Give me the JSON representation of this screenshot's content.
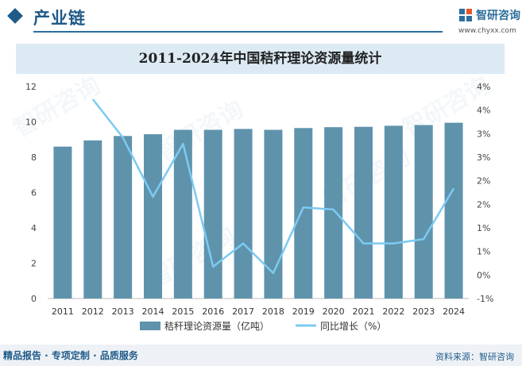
{
  "header": {
    "title": "产业链"
  },
  "logo": {
    "name": "智研咨询",
    "url": "www.chyxx.com"
  },
  "footer": {
    "left": "精品报告 · 专项定制 · 品质服务",
    "right": "资料来源：智研咨询"
  },
  "watermark": "智研咨询",
  "colors": {
    "bar": "#5f93ac",
    "line": "#7ccaf2",
    "brand": "#1f5a88"
  },
  "chart_data": {
    "type": "bar",
    "title": "2011-2024年中国秸秆理论资源量统计",
    "categories": [
      "2011",
      "2012",
      "2013",
      "2014",
      "2015",
      "2016",
      "2017",
      "2018",
      "2019",
      "2020",
      "2021",
      "2022",
      "2023",
      "2024"
    ],
    "series": [
      {
        "name": "秸秆理论资源量（亿吨）",
        "type": "bar",
        "axis": "left",
        "values": [
          8.6,
          8.95,
          9.2,
          9.3,
          9.55,
          9.55,
          9.6,
          9.55,
          9.65,
          9.7,
          9.72,
          9.78,
          9.82,
          9.95
        ]
      },
      {
        "name": "同比增长（%）",
        "type": "line",
        "axis": "right",
        "values": [
          null,
          3.7,
          2.8,
          1.4,
          2.65,
          -0.25,
          0.3,
          -0.4,
          1.15,
          1.1,
          0.3,
          0.3,
          0.4,
          1.6
        ]
      }
    ],
    "ylim_left": [
      0,
      12
    ],
    "yticks_left": [
      "0",
      "2",
      "4",
      "6",
      "8",
      "10",
      "12"
    ],
    "ylim_right": [
      -1,
      4
    ],
    "yticks_right": [
      "-1%",
      "0%",
      "1%",
      "1%",
      "2%",
      "2%",
      "3%",
      "3%",
      "4%",
      "4%"
    ],
    "legend_position": "bottom"
  }
}
